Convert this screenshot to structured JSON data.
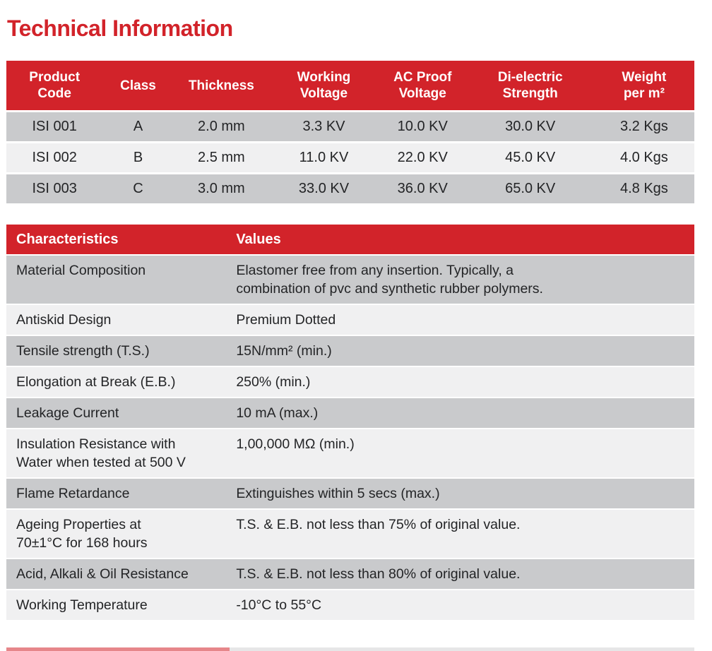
{
  "page_title": "Technical Information",
  "colors": {
    "brand_red": "#d2232a",
    "row_dark_gray": "#c9cacc",
    "row_light_gray": "#f0f0f1",
    "header_text": "#ffffff",
    "body_text": "#232426"
  },
  "spec_table": {
    "headers": [
      "Product\nCode",
      "Class",
      "Thickness",
      "Working\nVoltage",
      "AC Proof\nVoltage",
      "Di-electric\nStrength",
      "Weight\nper m²"
    ],
    "rows": [
      [
        "ISI 001",
        "A",
        "2.0 mm",
        "3.3 KV",
        "10.0 KV",
        "30.0 KV",
        "3.2 Kgs"
      ],
      [
        "ISI 002",
        "B",
        "2.5 mm",
        "11.0 KV",
        "22.0 KV",
        "45.0 KV",
        "4.0 Kgs"
      ],
      [
        "ISI 003",
        "C",
        "3.0 mm",
        "33.0 KV",
        "36.0 KV",
        "65.0 KV",
        "4.8 Kgs"
      ]
    ]
  },
  "characteristics_table": {
    "headers": [
      "Characteristics",
      "Values"
    ],
    "rows": [
      {
        "label": "Material Composition",
        "value": "Elastomer free from any insertion. Typically, a\ncombination of pvc and synthetic rubber polymers."
      },
      {
        "label": "Antiskid Design",
        "value": "Premium Dotted"
      },
      {
        "label": "Tensile strength (T.S.)",
        "value": "15N/mm² (min.)"
      },
      {
        "label": "Elongation at Break (E.B.)",
        "value": "250% (min.)"
      },
      {
        "label": "Leakage Current",
        "value": "10 mA (max.)"
      },
      {
        "label": "Insulation Resistance with\nWater when tested at 500 V",
        "value": "1,00,000 MΩ (min.)"
      },
      {
        "label": "Flame Retardance",
        "value": "Extinguishes within 5 secs (max.)"
      },
      {
        "label": "Ageing Properties at\n70±1°C for 168 hours",
        "value": "T.S. & E.B. not less than 75% of original value."
      },
      {
        "label": "Acid, Alkali & Oil Resistance",
        "value": "T.S. & E.B. not less than 80% of original value."
      },
      {
        "label": "Working Temperature",
        "value": "-10°C to 55°C"
      }
    ]
  }
}
